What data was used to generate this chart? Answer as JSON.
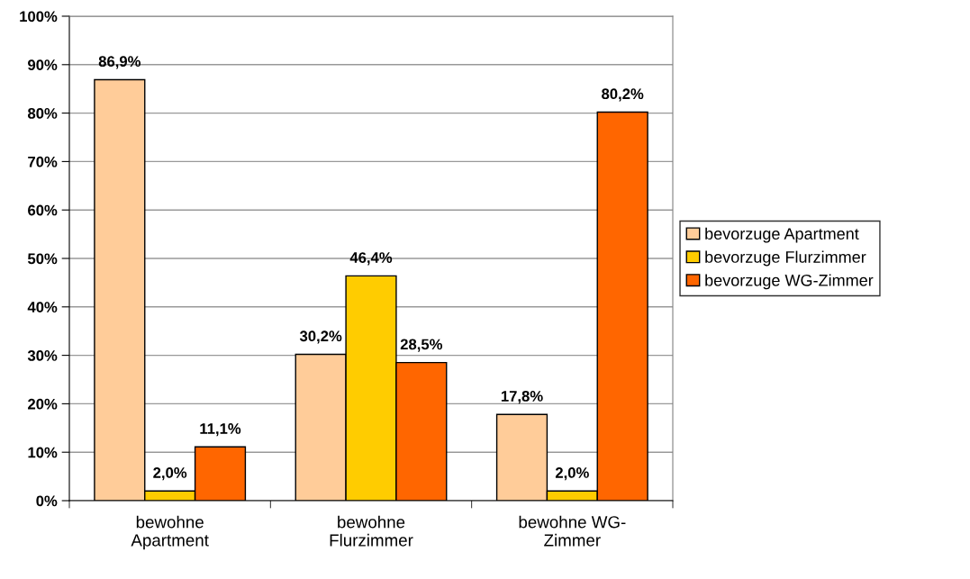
{
  "chart_data": {
    "type": "bar",
    "categories": [
      "bewohne\nApartment",
      "bewohne\nFlurzimmer",
      "bewohne WG-\nZimmer"
    ],
    "series": [
      {
        "name": "bevorzuge Apartment",
        "color": "#ffcc99",
        "values": [
          86.9,
          30.2,
          17.8
        ],
        "value_labels": [
          "86,9%",
          "30,2%",
          "17,8%"
        ]
      },
      {
        "name": "bevorzuge Flurzimmer",
        "color": "#ffcc00",
        "values": [
          2.0,
          46.4,
          2.0
        ],
        "value_labels": [
          "2,0%",
          "46,4%",
          "2,0%"
        ]
      },
      {
        "name": "bevorzuge WG-Zimmer",
        "color": "#ff6600",
        "values": [
          11.1,
          28.5,
          80.2
        ],
        "value_labels": [
          "11,1%",
          "28,5%",
          "80,2%"
        ]
      }
    ],
    "ylim": [
      0,
      100
    ],
    "yticks": [
      {
        "value": 0,
        "label": "0%"
      },
      {
        "value": 10,
        "label": "10%"
      },
      {
        "value": 20,
        "label": "20%"
      },
      {
        "value": 30,
        "label": "30%"
      },
      {
        "value": 40,
        "label": "40%"
      },
      {
        "value": 50,
        "label": "50%"
      },
      {
        "value": 60,
        "label": "60%"
      },
      {
        "value": 70,
        "label": "70%"
      },
      {
        "value": 80,
        "label": "80%"
      },
      {
        "value": 90,
        "label": "90%"
      },
      {
        "value": 100,
        "label": "100%"
      }
    ],
    "grid": "y",
    "legend": "right"
  }
}
